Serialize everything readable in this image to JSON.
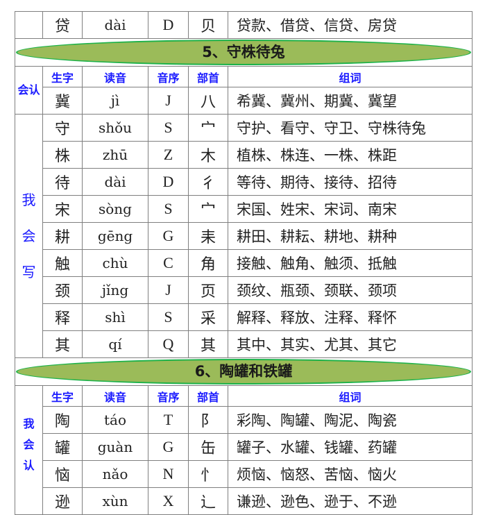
{
  "colors": {
    "header_text": "#1a1aff",
    "banner_fill": "#9bbb59",
    "banner_border": "#1db24a"
  },
  "headers": {
    "char": "生字",
    "pinyin": "读音",
    "order": "音序",
    "radical": "部首",
    "words": "组词"
  },
  "top_row": {
    "char": "贷",
    "pinyin": "dài",
    "order": "D",
    "radical": "贝",
    "words": "贷款、借贷、信贷、房贷"
  },
  "lesson5": {
    "title": "5、守株待兔",
    "recognize_label": "会认",
    "recognize": [
      {
        "char": "冀",
        "pinyin": "jì",
        "order": "J",
        "radical": "八",
        "words": "希冀、冀州、期冀、冀望"
      }
    ],
    "write_label": "我会写",
    "write": [
      {
        "char": "守",
        "pinyin": "shǒu",
        "order": "S",
        "radical": "宀",
        "words": "守护、看守、守卫、守株待兔"
      },
      {
        "char": "株",
        "pinyin": "zhū",
        "order": "Z",
        "radical": "木",
        "words": "植株、株连、一株、株距"
      },
      {
        "char": "待",
        "pinyin": "dài",
        "order": "D",
        "radical": "彳",
        "words": "等待、期待、接待、招待"
      },
      {
        "char": "宋",
        "pinyin": "sòng",
        "order": "S",
        "radical": "宀",
        "words": "宋国、姓宋、宋词、南宋"
      },
      {
        "char": "耕",
        "pinyin": "gēng",
        "order": "G",
        "radical": "耒",
        "words": "耕田、耕耘、耕地、耕种"
      },
      {
        "char": "触",
        "pinyin": "chù",
        "order": "C",
        "radical": "角",
        "words": "接触、触角、触须、抵触"
      },
      {
        "char": "颈",
        "pinyin": "jǐng",
        "order": "J",
        "radical": "页",
        "words": "颈纹、瓶颈、颈联、颈项"
      },
      {
        "char": "释",
        "pinyin": "shì",
        "order": "S",
        "radical": "采",
        "words": "解释、释放、注释、释怀"
      },
      {
        "char": "其",
        "pinyin": "qí",
        "order": "Q",
        "radical": "其",
        "words": "其中、其实、尤其、其它"
      }
    ]
  },
  "lesson6": {
    "title": "6、陶罐和铁罐",
    "recognize_label": "我会认",
    "recognize": [
      {
        "char": "陶",
        "pinyin": "táo",
        "order": "T",
        "radical": "阝",
        "words": "彩陶、陶罐、陶泥、陶瓷"
      },
      {
        "char": "罐",
        "pinyin": "guàn",
        "order": "G",
        "radical": "缶",
        "words": "罐子、水罐、钱罐、药罐"
      },
      {
        "char": "恼",
        "pinyin": "nǎo",
        "order": "N",
        "radical": "忄",
        "words": "烦恼、恼怒、苦恼、恼火"
      },
      {
        "char": "逊",
        "pinyin": "xùn",
        "order": "X",
        "radical": "辶",
        "words": "谦逊、逊色、逊于、不逊"
      }
    ]
  }
}
